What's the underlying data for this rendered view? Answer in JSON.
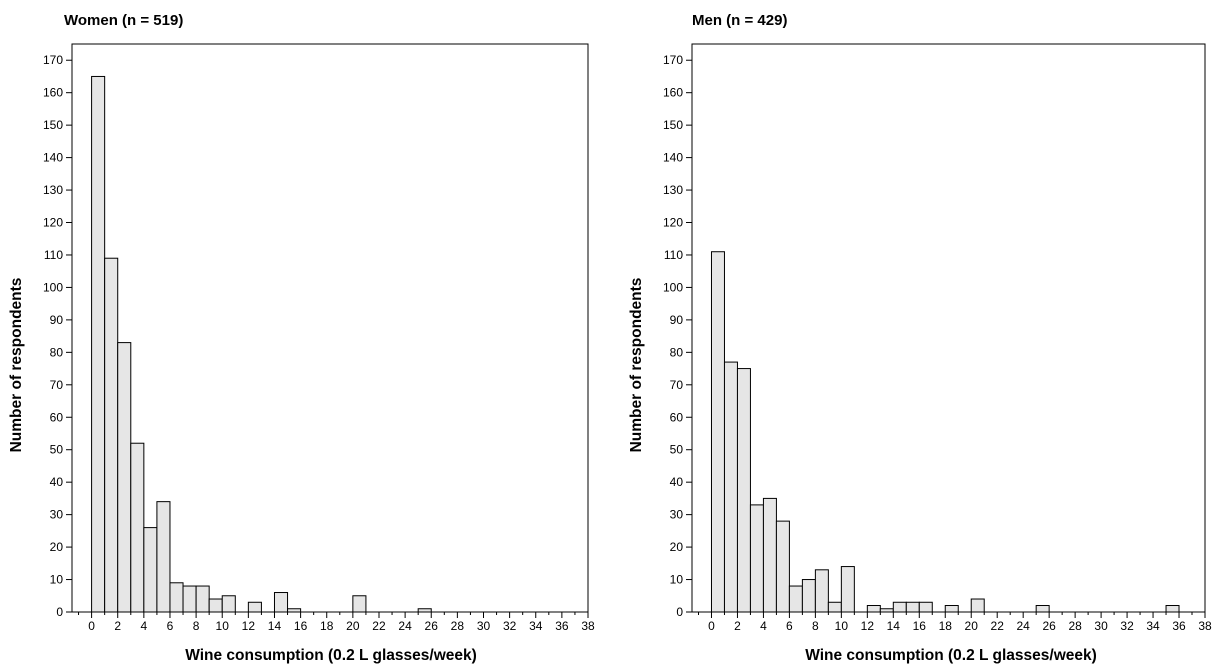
{
  "chart_data": [
    {
      "type": "bar",
      "title": "Women (n = 519)",
      "xlabel": "Wine consumption (0.2 L glasses/week)",
      "ylabel": "Number of respondents",
      "xlim": [
        -1.5,
        38
      ],
      "ylim": [
        0,
        175
      ],
      "xticks": [
        0,
        2,
        4,
        6,
        8,
        10,
        12,
        14,
        16,
        18,
        20,
        22,
        24,
        26,
        28,
        30,
        32,
        34,
        36,
        38
      ],
      "yticks": [
        0,
        10,
        20,
        30,
        40,
        50,
        60,
        70,
        80,
        90,
        100,
        110,
        120,
        130,
        140,
        150,
        160,
        170
      ],
      "bin_width": 1,
      "x": [
        0,
        1,
        2,
        3,
        4,
        5,
        6,
        7,
        8,
        9,
        10,
        12,
        14,
        15,
        20,
        25
      ],
      "values": [
        165,
        109,
        83,
        52,
        26,
        34,
        9,
        8,
        8,
        4,
        5,
        3,
        6,
        1,
        5,
        1
      ],
      "bar_color": "#e6e6e6",
      "grid": false
    },
    {
      "type": "bar",
      "title": "Men (n = 429)",
      "xlabel": "Wine consumption (0.2 L glasses/week)",
      "ylabel": "Number of respondents",
      "xlim": [
        -1.5,
        38
      ],
      "ylim": [
        0,
        175
      ],
      "xticks": [
        0,
        2,
        4,
        6,
        8,
        10,
        12,
        14,
        16,
        18,
        20,
        22,
        24,
        26,
        28,
        30,
        32,
        34,
        36,
        38
      ],
      "yticks": [
        0,
        10,
        20,
        30,
        40,
        50,
        60,
        70,
        80,
        90,
        100,
        110,
        120,
        130,
        140,
        150,
        160,
        170
      ],
      "bin_width": 1,
      "x": [
        0,
        1,
        2,
        3,
        4,
        5,
        6,
        7,
        8,
        9,
        10,
        12,
        13,
        14,
        15,
        16,
        18,
        20,
        25,
        35
      ],
      "values": [
        111,
        77,
        75,
        33,
        35,
        28,
        8,
        10,
        13,
        3,
        14,
        2,
        1,
        3,
        3,
        3,
        2,
        4,
        2,
        2
      ],
      "bar_color": "#e6e6e6",
      "grid": false
    }
  ]
}
